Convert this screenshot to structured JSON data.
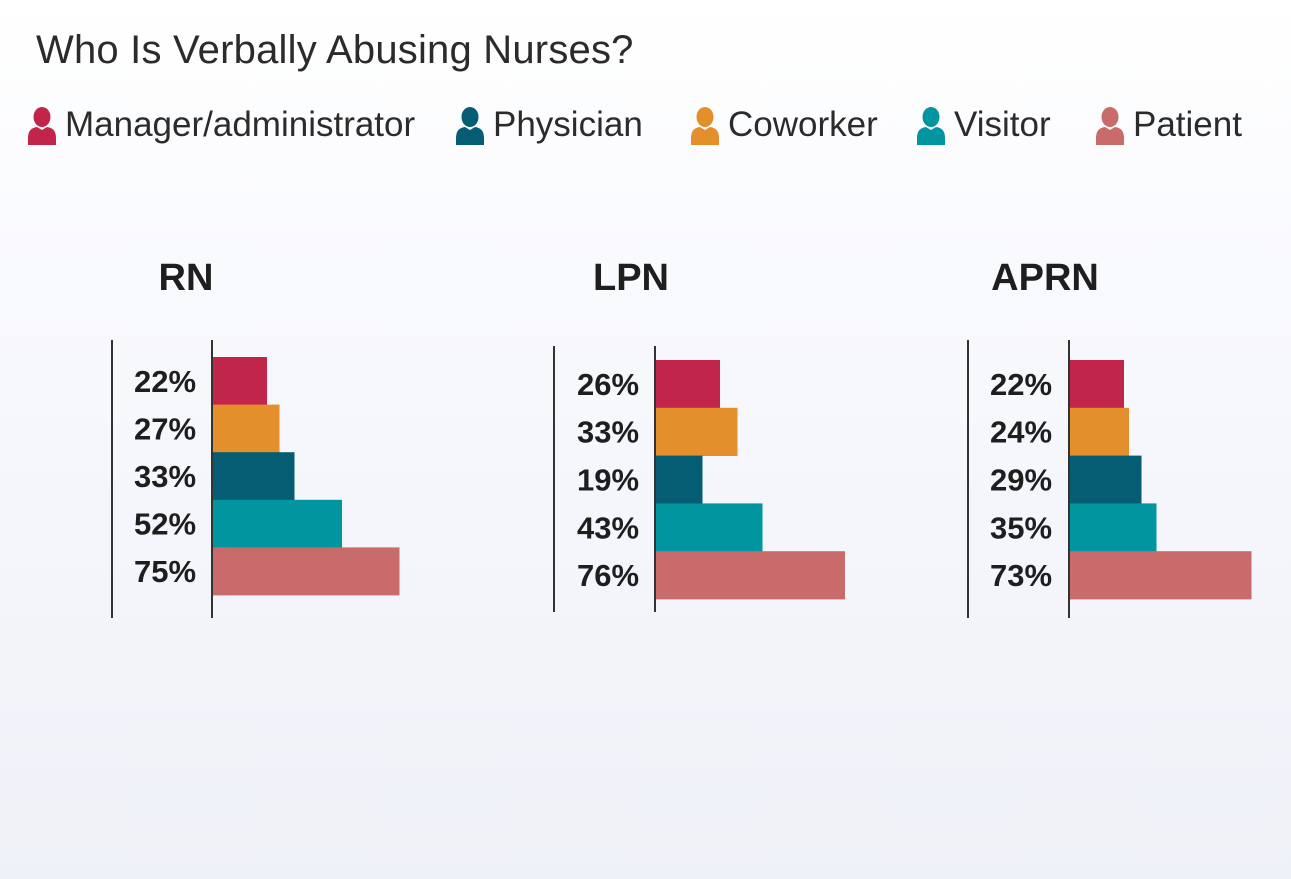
{
  "title": "Who Is Verbally Abusing Nurses?",
  "legend": [
    {
      "label": "Manager/administrator",
      "color": "#c2254a",
      "icon": "person-icon"
    },
    {
      "label": "Physician",
      "color": "#055d73",
      "icon": "person-icon"
    },
    {
      "label": "Coworker",
      "color": "#e38f2c",
      "icon": "person-icon"
    },
    {
      "label": "Visitor",
      "color": "#0195a0",
      "icon": "person-icon"
    },
    {
      "label": "Patient",
      "color": "#c96b6a",
      "icon": "person-icon"
    }
  ],
  "chart_data": [
    {
      "type": "bar",
      "orientation": "horizontal",
      "title": "RN",
      "categories": [
        "Manager/administrator",
        "Coworker",
        "Physician",
        "Visitor",
        "Patient"
      ],
      "values": [
        22,
        27,
        33,
        52,
        75
      ],
      "labels": [
        "22%",
        "27%",
        "33%",
        "52%",
        "75%"
      ],
      "colors": [
        "#c2254a",
        "#e38f2c",
        "#055d73",
        "#0195a0",
        "#c96b6a"
      ],
      "xlim": [
        0,
        100
      ]
    },
    {
      "type": "bar",
      "orientation": "horizontal",
      "title": "LPN",
      "categories": [
        "Manager/administrator",
        "Coworker",
        "Physician",
        "Visitor",
        "Patient"
      ],
      "values": [
        26,
        33,
        19,
        43,
        76
      ],
      "labels": [
        "26%",
        "33%",
        "19%",
        "43%",
        "76%"
      ],
      "colors": [
        "#c2254a",
        "#e38f2c",
        "#055d73",
        "#0195a0",
        "#c96b6a"
      ],
      "xlim": [
        0,
        100
      ]
    },
    {
      "type": "bar",
      "orientation": "horizontal",
      "title": "APRN",
      "categories": [
        "Manager/administrator",
        "Coworker",
        "Physician",
        "Visitor",
        "Patient"
      ],
      "values": [
        22,
        24,
        29,
        35,
        73
      ],
      "labels": [
        "22%",
        "24%",
        "29%",
        "35%",
        "73%"
      ],
      "colors": [
        "#c2254a",
        "#e38f2c",
        "#055d73",
        "#0195a0",
        "#c96b6a"
      ],
      "xlim": [
        0,
        100
      ]
    }
  ]
}
